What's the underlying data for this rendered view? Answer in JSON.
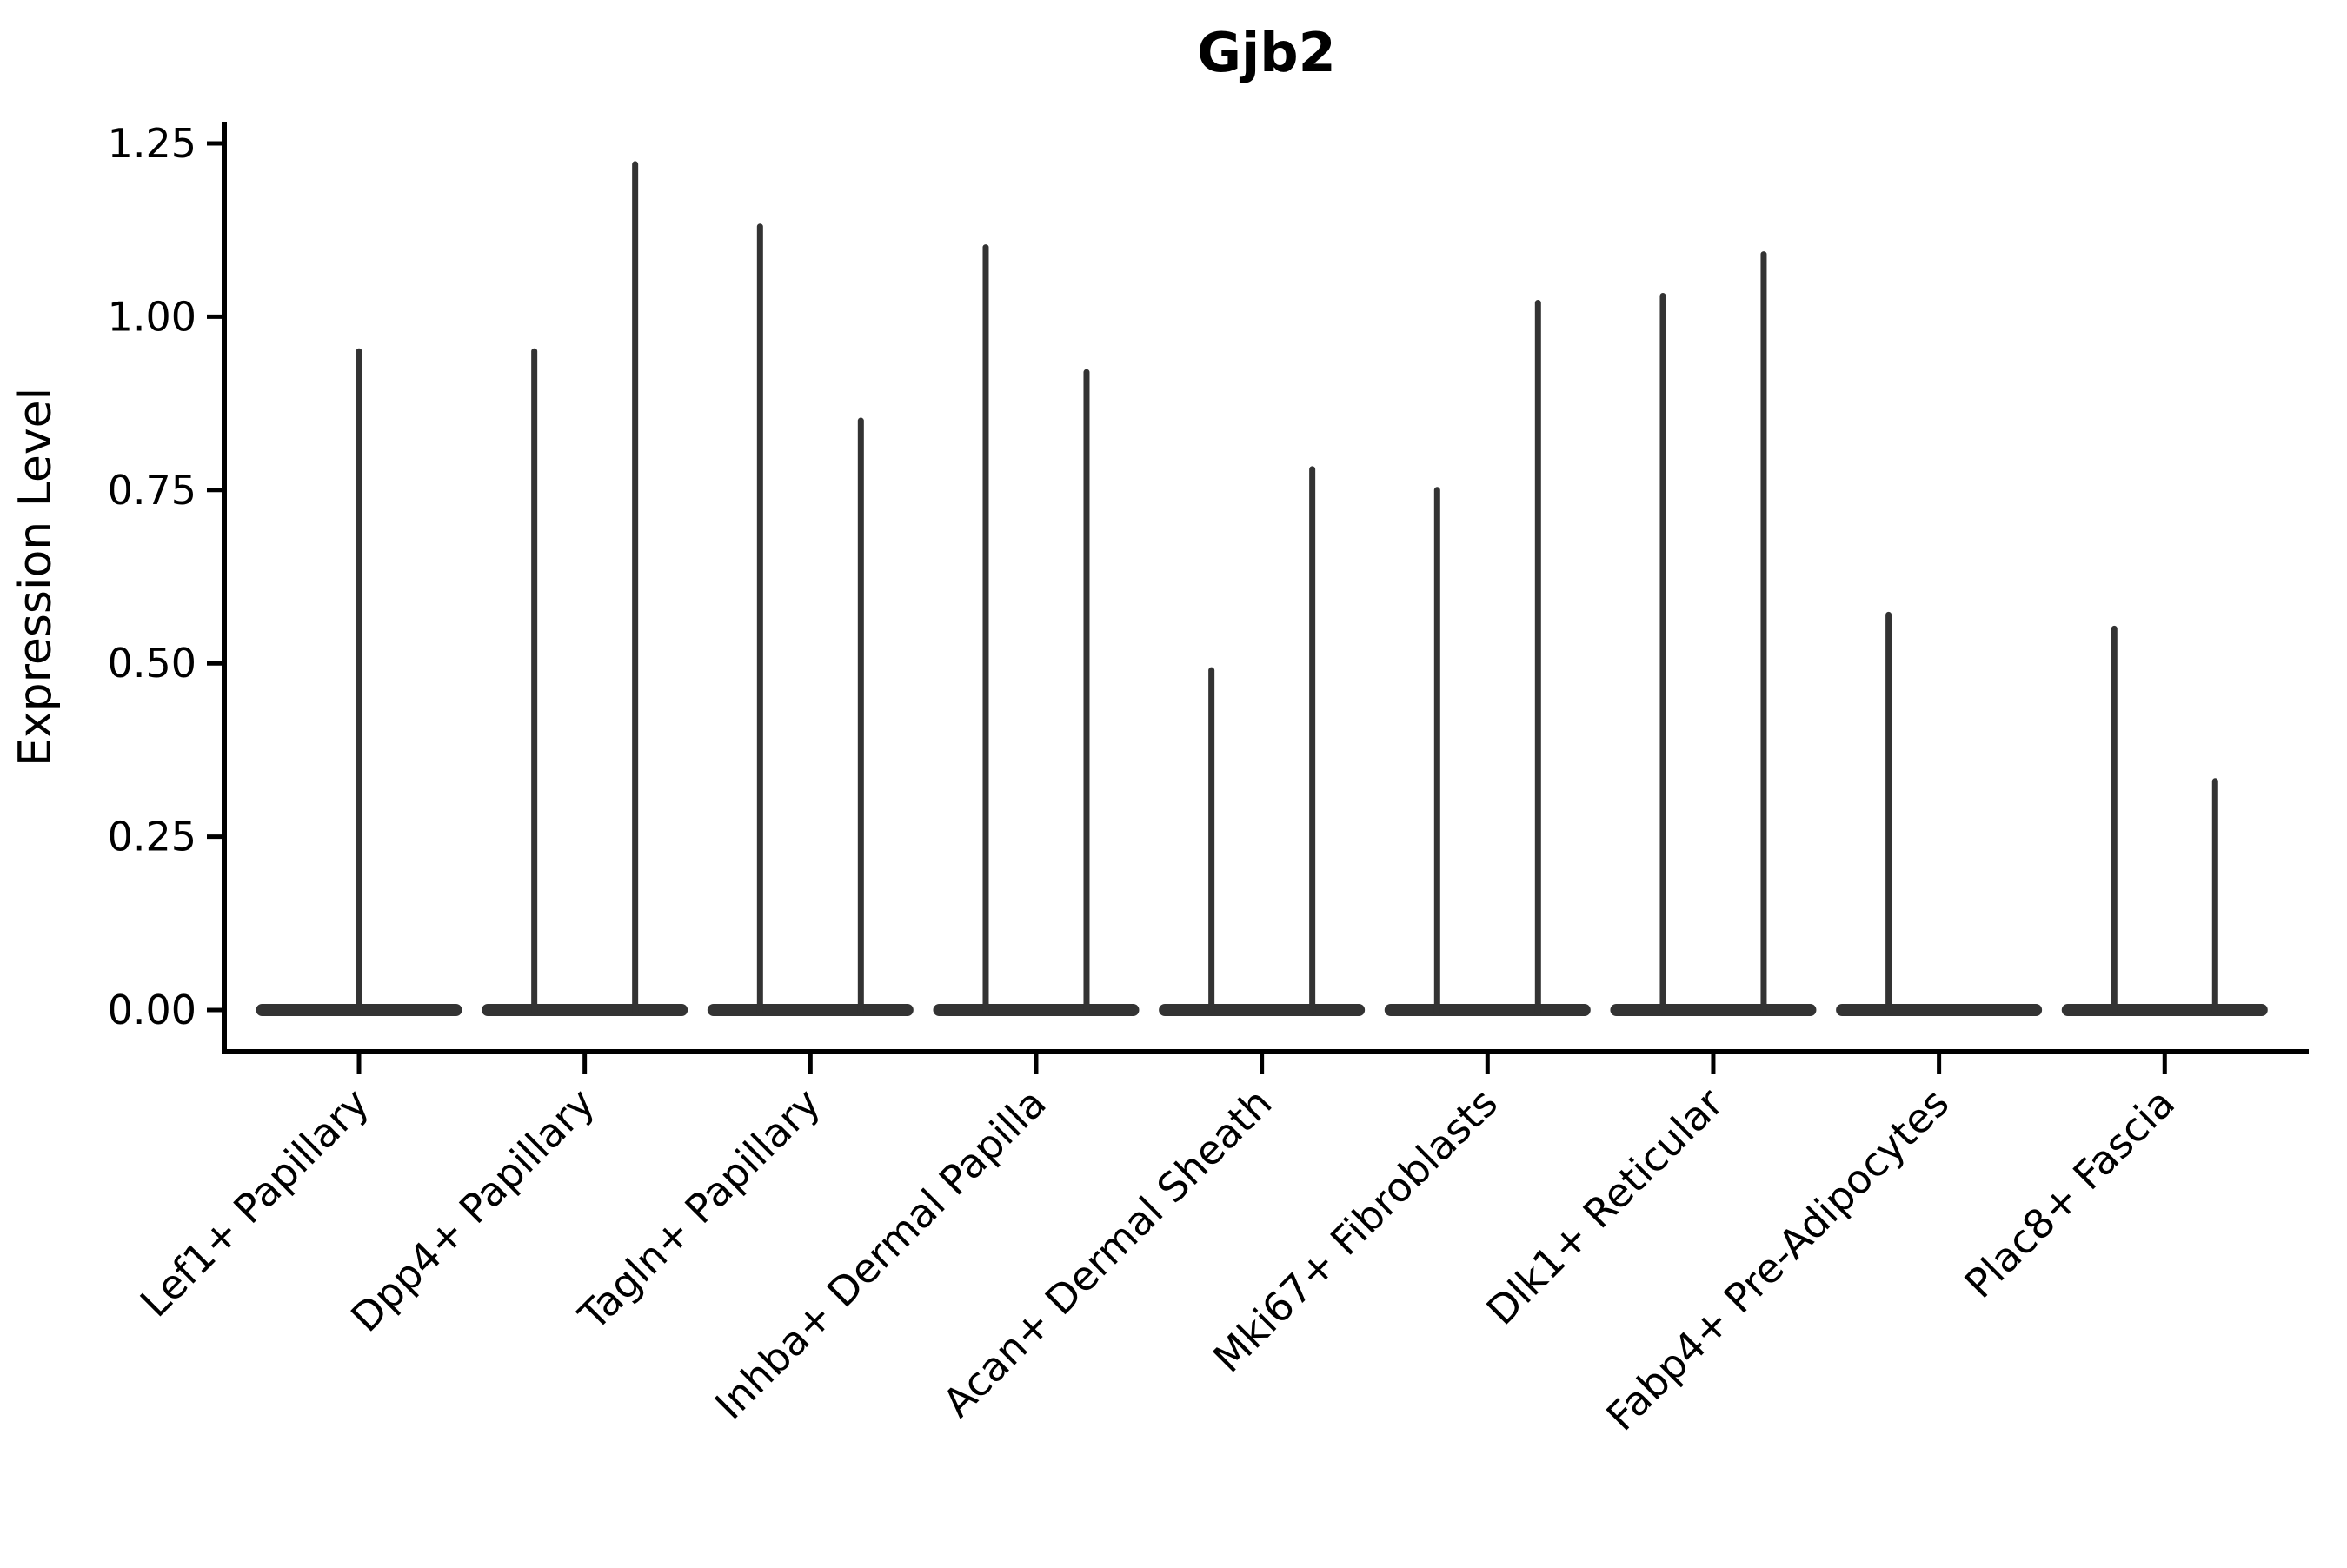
{
  "chart_data": {
    "type": "violin",
    "title": "Gjb2",
    "ylabel": "Expression Level",
    "xlabel": "",
    "ylim": [
      0,
      1.25
    ],
    "ytick_labels": [
      "0.00",
      "0.25",
      "0.50",
      "0.75",
      "1.00",
      "1.25"
    ],
    "ytick_values": [
      0,
      0.25,
      0.5,
      0.75,
      1.0,
      1.25
    ],
    "grid": false,
    "legend_position": "none",
    "colors": {
      "violin": "#333333",
      "axis": "#000000",
      "text": "#000000",
      "background": "#ffffff"
    },
    "categories": [
      {
        "label": "Lef1+ Papillary",
        "spikes": [
          {
            "position": "center",
            "max": 0.95
          }
        ]
      },
      {
        "label": "Dpp4+ Papillary",
        "spikes": [
          {
            "position": "left",
            "max": 0.95
          },
          {
            "position": "right",
            "max": 1.22
          }
        ]
      },
      {
        "label": "Tagln+ Papillary",
        "spikes": [
          {
            "position": "left",
            "max": 1.13
          },
          {
            "position": "right",
            "max": 0.85
          }
        ]
      },
      {
        "label": "Inhba+ Dermal Papilla",
        "spikes": [
          {
            "position": "left",
            "max": 1.1
          },
          {
            "position": "right",
            "max": 0.92
          }
        ]
      },
      {
        "label": "Acan+ Dermal Sheath",
        "spikes": [
          {
            "position": "left",
            "max": 0.49
          },
          {
            "position": "right",
            "max": 0.78
          }
        ]
      },
      {
        "label": "Mki67+ Fibroblasts",
        "spikes": [
          {
            "position": "left",
            "max": 0.75
          },
          {
            "position": "right",
            "max": 1.02
          }
        ]
      },
      {
        "label": "Dlk1+ Reticular",
        "spikes": [
          {
            "position": "left",
            "max": 1.03
          },
          {
            "position": "right",
            "max": 1.09
          }
        ]
      },
      {
        "label": "Fabp4+ Pre-Adipocytes",
        "spikes": [
          {
            "position": "left",
            "max": 0.57
          }
        ]
      },
      {
        "label": "Plac8+ Fascia",
        "spikes": [
          {
            "position": "left",
            "max": 0.55
          },
          {
            "position": "right",
            "max": 0.33
          }
        ]
      }
    ]
  }
}
